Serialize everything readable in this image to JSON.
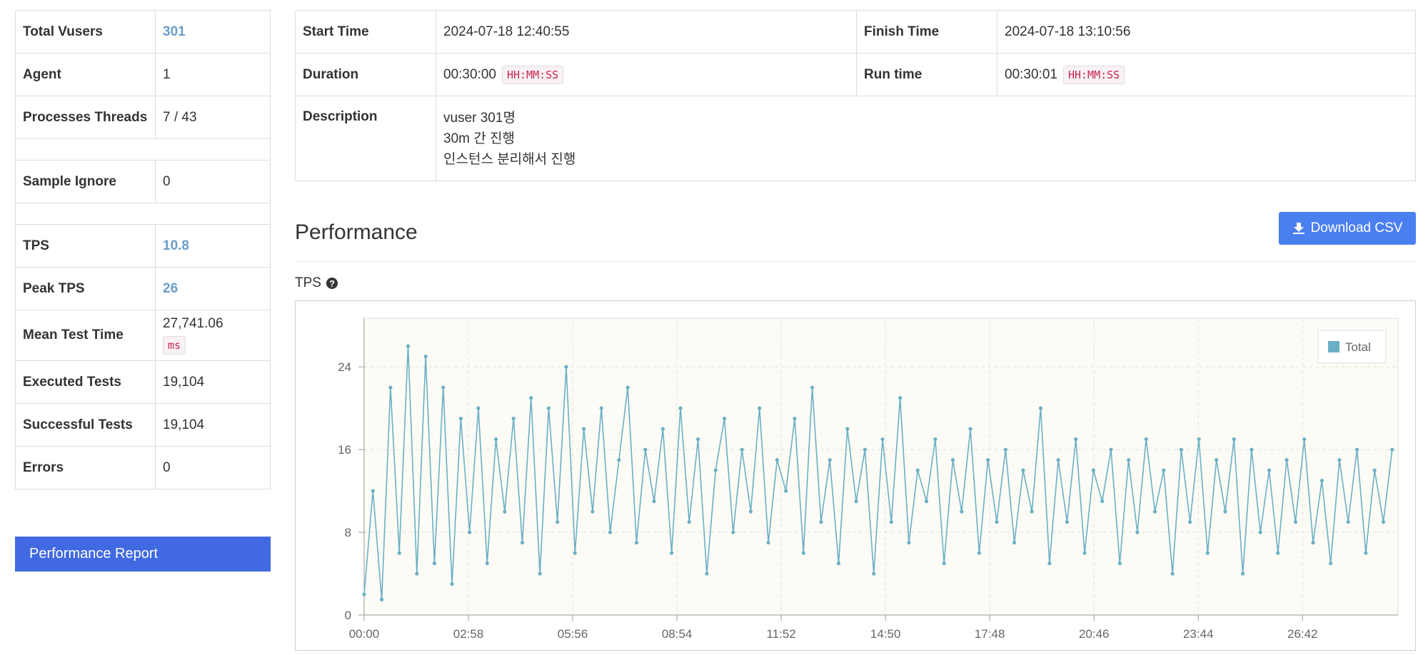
{
  "summary": {
    "groups": [
      [
        {
          "label": "Total Vusers",
          "value": "301",
          "color": "#6a9ec9"
        },
        {
          "label": "Agent",
          "value": "1"
        },
        {
          "label": "Processes Threads",
          "value": "7 / 43"
        }
      ],
      [
        {
          "label": "Sample Ignore",
          "value": "0"
        }
      ],
      [
        {
          "label": "TPS",
          "value": "10.8",
          "color": "#6a9ec9"
        },
        {
          "label": "Peak TPS",
          "value": "26",
          "color": "#6a9ec9"
        },
        {
          "label": "Mean Test Time",
          "value": "27,741.06",
          "unit": "ms"
        },
        {
          "label": "Executed Tests",
          "value": "19,104"
        },
        {
          "label": "Successful Tests",
          "value": "19,104"
        },
        {
          "label": "Errors",
          "value": "0"
        }
      ]
    ],
    "report_button": "Performance Report"
  },
  "run_info": {
    "start_time_label": "Start Time",
    "start_time": "2024-07-18 12:40:55",
    "finish_time_label": "Finish Time",
    "finish_time": "2024-07-18 13:10:56",
    "duration_label": "Duration",
    "duration": "00:30:00",
    "duration_unit": "HH:MM:SS",
    "run_time_label": "Run time",
    "run_time": "00:30:01",
    "run_time_unit": "HH:MM:SS",
    "description_label": "Description",
    "description": [
      "vuser 301명",
      "30m 간 진행",
      "인스턴스 분리해서 진행"
    ]
  },
  "performance": {
    "title": "Performance",
    "download_button": "Download CSV"
  },
  "chart_data": {
    "type": "line",
    "title": "TPS",
    "x": [
      0,
      15,
      30,
      45,
      60,
      75,
      90,
      105,
      120,
      135,
      150,
      165,
      180,
      195,
      210,
      225,
      240,
      255,
      270,
      285,
      300,
      315,
      330,
      345,
      360,
      375,
      390,
      405,
      420,
      435,
      450,
      465,
      480,
      495,
      510,
      525,
      540,
      555,
      570,
      585,
      600,
      615,
      630,
      645,
      660,
      675,
      690,
      705,
      720,
      735,
      750,
      765,
      780,
      795,
      810,
      825,
      840,
      855,
      870,
      885,
      900,
      915,
      930,
      945,
      960,
      975,
      990,
      1005,
      1020,
      1035,
      1050,
      1065,
      1080,
      1095,
      1110,
      1125,
      1140,
      1155,
      1170,
      1185,
      1200,
      1215,
      1230,
      1245,
      1260,
      1275,
      1290,
      1305,
      1320,
      1335,
      1350,
      1365,
      1380,
      1395,
      1410,
      1425,
      1440,
      1455,
      1470,
      1485,
      1500,
      1515,
      1530,
      1545,
      1560,
      1575,
      1590,
      1605,
      1620,
      1635,
      1650,
      1665,
      1680,
      1695,
      1710,
      1725,
      1740,
      1755
    ],
    "series": [
      {
        "name": "Total",
        "color": "#6ab0c5",
        "values": [
          2,
          12,
          1.5,
          22,
          6,
          26,
          4,
          25,
          5,
          22,
          3,
          19,
          8,
          20,
          5,
          17,
          10,
          19,
          7,
          21,
          4,
          20,
          9,
          24,
          6,
          18,
          10,
          20,
          8,
          15,
          22,
          7,
          16,
          11,
          18,
          6,
          20,
          9,
          17,
          4,
          14,
          19,
          8,
          16,
          10,
          20,
          7,
          15,
          12,
          19,
          6,
          22,
          9,
          15,
          5,
          18,
          11,
          16,
          4,
          17,
          9,
          21,
          7,
          14,
          11,
          17,
          5,
          15,
          10,
          18,
          6,
          15,
          9,
          16,
          7,
          14,
          10,
          20,
          5,
          15,
          9,
          17,
          6,
          14,
          11,
          16,
          5,
          15,
          8,
          17,
          10,
          14,
          4,
          16,
          9,
          17,
          6,
          15,
          10,
          17,
          4,
          16,
          8,
          14,
          6,
          15,
          9,
          17,
          7,
          13,
          5,
          15,
          9,
          16,
          6,
          14,
          9,
          16
        ]
      }
    ],
    "xlim": [
      0,
      1765
    ],
    "ylim": [
      0,
      28.7
    ],
    "xticks": [
      {
        "value": 0,
        "label": "00:00"
      },
      {
        "value": 178,
        "label": "02:58"
      },
      {
        "value": 356,
        "label": "05:56"
      },
      {
        "value": 534,
        "label": "08:54"
      },
      {
        "value": 712,
        "label": "11:52"
      },
      {
        "value": 890,
        "label": "14:50"
      },
      {
        "value": 1068,
        "label": "17:48"
      },
      {
        "value": 1246,
        "label": "20:46"
      },
      {
        "value": 1424,
        "label": "23:44"
      },
      {
        "value": 1602,
        "label": "26:42"
      }
    ],
    "yticks": [
      0,
      8,
      16,
      24
    ],
    "grid": true,
    "legend": "upper right"
  }
}
